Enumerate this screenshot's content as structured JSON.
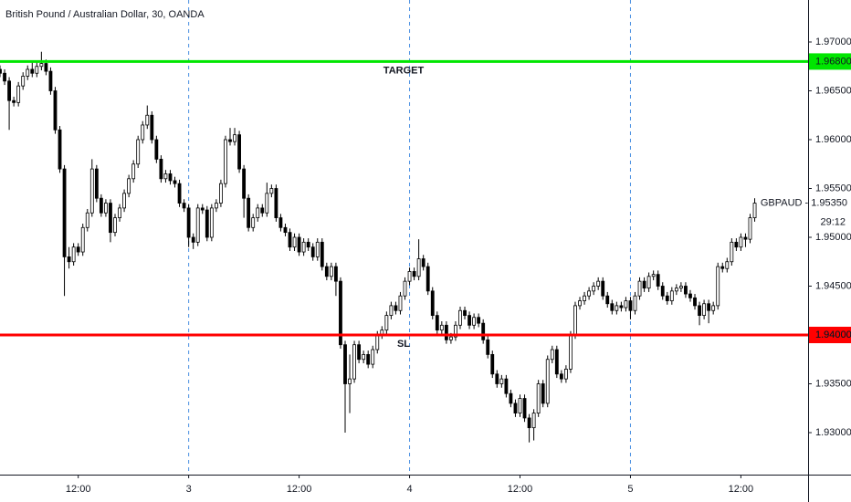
{
  "chart_data": {
    "type": "candlestick",
    "title": "British Pound / Australian Dollar, 30, OANDA",
    "symbol_label": "GBPAUD - 1.95350",
    "countdown": "29:12",
    "bull_color": "#ffffff",
    "bear_color": "#000000",
    "outline_color": "#000000",
    "xlim": [
      3.5,
      91.3
    ],
    "ylim": [
      1.9257,
      1.9743
    ],
    "xticks": [
      {
        "value": 12,
        "label": "12:00"
      },
      {
        "value": 24,
        "label": "3"
      },
      {
        "value": 36,
        "label": "12:00"
      },
      {
        "value": 48,
        "label": "4"
      },
      {
        "value": 60,
        "label": "12:00"
      },
      {
        "value": 72,
        "label": "5"
      },
      {
        "value": 84,
        "label": "12:00"
      }
    ],
    "yticks": [
      {
        "value": 1.93,
        "label": "1.93000"
      },
      {
        "value": 1.935,
        "label": "1.93500"
      },
      {
        "value": 1.94,
        "label": "1.94000"
      },
      {
        "value": 1.945,
        "label": "1.94500"
      },
      {
        "value": 1.95,
        "label": "1.95000"
      },
      {
        "value": 1.955,
        "label": "1.95500"
      },
      {
        "value": 1.96,
        "label": "1.96000"
      },
      {
        "value": 1.965,
        "label": "1.96500"
      },
      {
        "value": 1.97,
        "label": "1.97000"
      }
    ],
    "levels": [
      {
        "value": 1.968,
        "label": "1.96800",
        "text": "TARGET",
        "color": "#00e600",
        "text_color": "#2e8b2e"
      },
      {
        "value": 1.94,
        "label": "1.94000",
        "text": "SL",
        "color": "#ff0000",
        "text_color": "#ff0000"
      }
    ],
    "x": [
      3.5,
      4,
      4.5,
      5,
      5.5,
      6,
      6.5,
      7,
      7.5,
      8,
      8.5,
      9,
      9.5,
      10,
      10.5,
      11,
      11.5,
      12,
      12.5,
      13,
      13.5,
      14,
      14.5,
      15,
      15.5,
      16,
      16.5,
      17,
      17.5,
      18,
      18.5,
      19,
      19.5,
      20,
      20.5,
      21,
      21.5,
      22,
      22.5,
      23,
      23.5,
      24,
      24.5,
      25,
      25.5,
      26,
      26.5,
      27,
      27.5,
      28,
      28.5,
      29,
      29.5,
      30,
      30.5,
      31,
      31.5,
      32,
      32.5,
      33,
      33.5,
      34,
      34.5,
      35,
      35.5,
      36,
      36.5,
      37,
      37.5,
      38,
      38.5,
      39,
      39.5,
      40,
      40.5,
      41,
      41.5,
      42,
      42.5,
      43,
      43.5,
      44,
      44.5,
      45,
      45.5,
      46,
      46.5,
      47,
      47.5,
      48,
      48.5,
      49,
      49.5,
      50,
      50.5,
      51,
      51.5,
      52,
      52.5,
      53,
      53.5,
      54,
      54.5,
      55,
      55.5,
      56,
      56.5,
      57,
      57.5,
      58,
      58.5,
      59,
      59.5,
      60,
      60.5,
      61,
      61.5,
      62,
      62.5,
      63,
      63.5,
      64,
      64.5,
      65,
      65.5,
      66,
      66.5,
      67,
      67.5,
      68,
      68.5,
      69,
      69.5,
      70,
      70.5,
      71,
      71.5,
      72,
      72.5,
      73,
      73.5,
      74,
      74.5,
      75,
      75.5,
      76,
      76.5,
      77,
      77.5,
      78,
      78.5,
      79,
      79.5,
      80,
      80.5,
      81,
      81.5,
      82,
      82.5,
      83,
      83.5,
      84,
      84.5,
      85,
      85.5
    ],
    "open": [
      1.9672,
      1.9668,
      1.966,
      1.964,
      1.9638,
      1.9655,
      1.9665,
      1.9672,
      1.9668,
      1.9675,
      1.9678,
      1.967,
      1.965,
      1.961,
      1.957,
      1.948,
      1.9475,
      1.949,
      1.9485,
      1.951,
      1.9525,
      1.957,
      1.954,
      1.9525,
      1.9535,
      1.9505,
      1.952,
      1.953,
      1.9545,
      1.956,
      1.9575,
      1.96,
      1.9615,
      1.9625,
      1.96,
      1.958,
      1.956,
      1.9565,
      1.9558,
      1.9555,
      1.9535,
      1.953,
      1.95,
      1.9495,
      1.953,
      1.9528,
      1.95,
      1.953,
      1.9535,
      1.9555,
      1.96,
      1.9598,
      1.9605,
      1.957,
      1.954,
      1.951,
      1.952,
      1.953,
      1.9525,
      1.9545,
      1.955,
      1.952,
      1.951,
      1.9505,
      1.949,
      1.95,
      1.9485,
      1.9495,
      1.949,
      1.948,
      1.9495,
      1.947,
      1.946,
      1.947,
      1.9455,
      1.939,
      1.935,
      1.9355,
      1.939,
      1.9375,
      1.938,
      1.937,
      1.9385,
      1.94,
      1.9405,
      1.942,
      1.943,
      1.9425,
      1.944,
      1.9455,
      1.9465,
      1.946,
      1.9478,
      1.947,
      1.9445,
      1.942,
      1.9405,
      1.941,
      1.9395,
      1.9398,
      1.941,
      1.9425,
      1.942,
      1.941,
      1.9418,
      1.9412,
      1.9395,
      1.938,
      1.936,
      1.935,
      1.9355,
      1.934,
      1.933,
      1.932,
      1.9335,
      1.9315,
      1.9305,
      1.932,
      1.935,
      1.933,
      1.9375,
      1.9385,
      1.936,
      1.9355,
      1.9365,
      1.94,
      1.943,
      1.9435,
      1.944,
      1.9445,
      1.945,
      1.9455,
      1.944,
      1.9432,
      1.9425,
      1.943,
      1.9428,
      1.9435,
      1.9425,
      1.944,
      1.9455,
      1.9448,
      1.946,
      1.9462,
      1.945,
      1.944,
      1.9435,
      1.9445,
      1.9448,
      1.945,
      1.9442,
      1.9438,
      1.943,
      1.942,
      1.9432,
      1.9425,
      1.943,
      1.947,
      1.9468,
      1.9475,
      1.9495,
      1.949,
      1.95,
      1.9498,
      1.952
    ],
    "high": [
      1.9676,
      1.9672,
      1.9664,
      1.9644,
      1.9659,
      1.9669,
      1.9676,
      1.968,
      1.9679,
      1.969,
      1.9682,
      1.9674,
      1.9654,
      1.9614,
      1.9574,
      1.949,
      1.9494,
      1.9494,
      1.9514,
      1.9529,
      1.958,
      1.9574,
      1.9544,
      1.9539,
      1.9539,
      1.9524,
      1.9534,
      1.9549,
      1.9564,
      1.9579,
      1.9604,
      1.9619,
      1.9635,
      1.9629,
      1.9604,
      1.9584,
      1.9569,
      1.9569,
      1.9562,
      1.9559,
      1.9539,
      1.9534,
      1.9504,
      1.9534,
      1.9534,
      1.9532,
      1.9534,
      1.9539,
      1.9559,
      1.9604,
      1.9612,
      1.9612,
      1.9609,
      1.9574,
      1.9544,
      1.9524,
      1.9534,
      1.9534,
      1.9556,
      1.9554,
      1.9554,
      1.9524,
      1.9514,
      1.9509,
      1.9504,
      1.9504,
      1.9499,
      1.9499,
      1.9494,
      1.9499,
      1.9499,
      1.9474,
      1.9474,
      1.9474,
      1.9459,
      1.9394,
      1.938,
      1.9394,
      1.9394,
      1.9384,
      1.9384,
      1.9389,
      1.9404,
      1.9409,
      1.9424,
      1.9434,
      1.9434,
      1.9444,
      1.9459,
      1.9469,
      1.9469,
      1.9498,
      1.9482,
      1.9474,
      1.9449,
      1.9424,
      1.9414,
      1.9414,
      1.9402,
      1.9414,
      1.9429,
      1.9429,
      1.9424,
      1.9422,
      1.9422,
      1.9416,
      1.9399,
      1.9384,
      1.9364,
      1.9359,
      1.9359,
      1.9344,
      1.9334,
      1.9339,
      1.9339,
      1.9319,
      1.9324,
      1.9354,
      1.9354,
      1.9379,
      1.9389,
      1.9389,
      1.9364,
      1.9369,
      1.9404,
      1.9434,
      1.9439,
      1.9444,
      1.9449,
      1.9454,
      1.9459,
      1.9459,
      1.9444,
      1.9436,
      1.9434,
      1.9434,
      1.9439,
      1.9439,
      1.9444,
      1.9459,
      1.9459,
      1.9464,
      1.9466,
      1.9466,
      1.9454,
      1.9444,
      1.9449,
      1.9452,
      1.9454,
      1.9454,
      1.9446,
      1.9442,
      1.9434,
      1.9436,
      1.9436,
      1.9434,
      1.9474,
      1.9474,
      1.9479,
      1.9499,
      1.9499,
      1.9504,
      1.9504,
      1.9524,
      1.954
    ],
    "low": [
      1.9664,
      1.9656,
      1.961,
      1.9634,
      1.9634,
      1.9651,
      1.9661,
      1.9664,
      1.9664,
      1.9671,
      1.9666,
      1.9646,
      1.9606,
      1.9566,
      1.944,
      1.9468,
      1.9471,
      1.9481,
      1.9481,
      1.9506,
      1.9521,
      1.9536,
      1.9521,
      1.9521,
      1.9495,
      1.9501,
      1.9516,
      1.9526,
      1.9541,
      1.9556,
      1.9571,
      1.9596,
      1.9611,
      1.9596,
      1.9576,
      1.9556,
      1.9556,
      1.9554,
      1.9551,
      1.9531,
      1.9526,
      1.949,
      1.9488,
      1.9491,
      1.9524,
      1.9496,
      1.9496,
      1.9526,
      1.9531,
      1.9551,
      1.9594,
      1.9594,
      1.9566,
      1.952,
      1.9506,
      1.9506,
      1.9516,
      1.9521,
      1.9521,
      1.9541,
      1.9516,
      1.9506,
      1.9501,
      1.9486,
      1.9486,
      1.9481,
      1.9481,
      1.9486,
      1.9476,
      1.9476,
      1.9466,
      1.9456,
      1.9456,
      1.944,
      1.9386,
      1.93,
      1.932,
      1.9351,
      1.9371,
      1.9371,
      1.9366,
      1.9366,
      1.9381,
      1.9396,
      1.9401,
      1.9416,
      1.9421,
      1.9421,
      1.9436,
      1.9451,
      1.9456,
      1.9456,
      1.9466,
      1.9441,
      1.9416,
      1.9401,
      1.9401,
      1.9391,
      1.9391,
      1.9394,
      1.9406,
      1.9416,
      1.9406,
      1.9406,
      1.9408,
      1.9391,
      1.9376,
      1.9356,
      1.9346,
      1.9346,
      1.9336,
      1.9326,
      1.9316,
      1.9316,
      1.9311,
      1.929,
      1.9292,
      1.9316,
      1.9326,
      1.9326,
      1.9371,
      1.9356,
      1.9351,
      1.9351,
      1.9361,
      1.9396,
      1.9426,
      1.9431,
      1.9436,
      1.9441,
      1.9446,
      1.9436,
      1.9428,
      1.9421,
      1.9421,
      1.9424,
      1.9424,
      1.9416,
      1.9421,
      1.9436,
      1.9444,
      1.9444,
      1.9456,
      1.9446,
      1.9436,
      1.9431,
      1.9431,
      1.9441,
      1.9444,
      1.9438,
      1.9434,
      1.9426,
      1.941,
      1.9416,
      1.9412,
      1.9421,
      1.9426,
      1.9464,
      1.9464,
      1.9471,
      1.9486,
      1.9486,
      1.949,
      1.9494,
      1.9516
    ],
    "close": [
      1.9668,
      1.966,
      1.964,
      1.9638,
      1.9655,
      1.9665,
      1.9672,
      1.9668,
      1.9675,
      1.9678,
      1.967,
      1.965,
      1.961,
      1.957,
      1.948,
      1.9475,
      1.949,
      1.9485,
      1.951,
      1.9525,
      1.957,
      1.954,
      1.9525,
      1.9535,
      1.9505,
      1.952,
      1.953,
      1.9545,
      1.956,
      1.9575,
      1.96,
      1.9615,
      1.9625,
      1.96,
      1.958,
      1.956,
      1.9565,
      1.9558,
      1.9555,
      1.9535,
      1.953,
      1.95,
      1.9495,
      1.953,
      1.9528,
      1.95,
      1.953,
      1.9535,
      1.9555,
      1.96,
      1.9598,
      1.9605,
      1.957,
      1.954,
      1.951,
      1.952,
      1.953,
      1.9525,
      1.9545,
      1.955,
      1.952,
      1.951,
      1.9505,
      1.949,
      1.95,
      1.9485,
      1.9495,
      1.949,
      1.948,
      1.9495,
      1.947,
      1.946,
      1.947,
      1.9455,
      1.939,
      1.935,
      1.9355,
      1.939,
      1.9375,
      1.938,
      1.937,
      1.9385,
      1.94,
      1.9405,
      1.942,
      1.943,
      1.9425,
      1.944,
      1.9455,
      1.9465,
      1.946,
      1.9478,
      1.947,
      1.9445,
      1.942,
      1.9405,
      1.941,
      1.9395,
      1.9398,
      1.941,
      1.9425,
      1.942,
      1.941,
      1.9418,
      1.9412,
      1.9395,
      1.938,
      1.936,
      1.935,
      1.9355,
      1.934,
      1.933,
      1.932,
      1.9335,
      1.9315,
      1.9305,
      1.932,
      1.935,
      1.933,
      1.9375,
      1.9385,
      1.936,
      1.9355,
      1.9365,
      1.94,
      1.943,
      1.9435,
      1.944,
      1.9445,
      1.945,
      1.9455,
      1.944,
      1.9432,
      1.9425,
      1.943,
      1.9428,
      1.9435,
      1.9425,
      1.944,
      1.9455,
      1.9448,
      1.946,
      1.9462,
      1.945,
      1.944,
      1.9435,
      1.9445,
      1.9448,
      1.945,
      1.9442,
      1.9438,
      1.943,
      1.942,
      1.9432,
      1.9425,
      1.943,
      1.947,
      1.9468,
      1.9475,
      1.9495,
      1.949,
      1.95,
      1.9498,
      1.952,
      1.9535
    ]
  }
}
